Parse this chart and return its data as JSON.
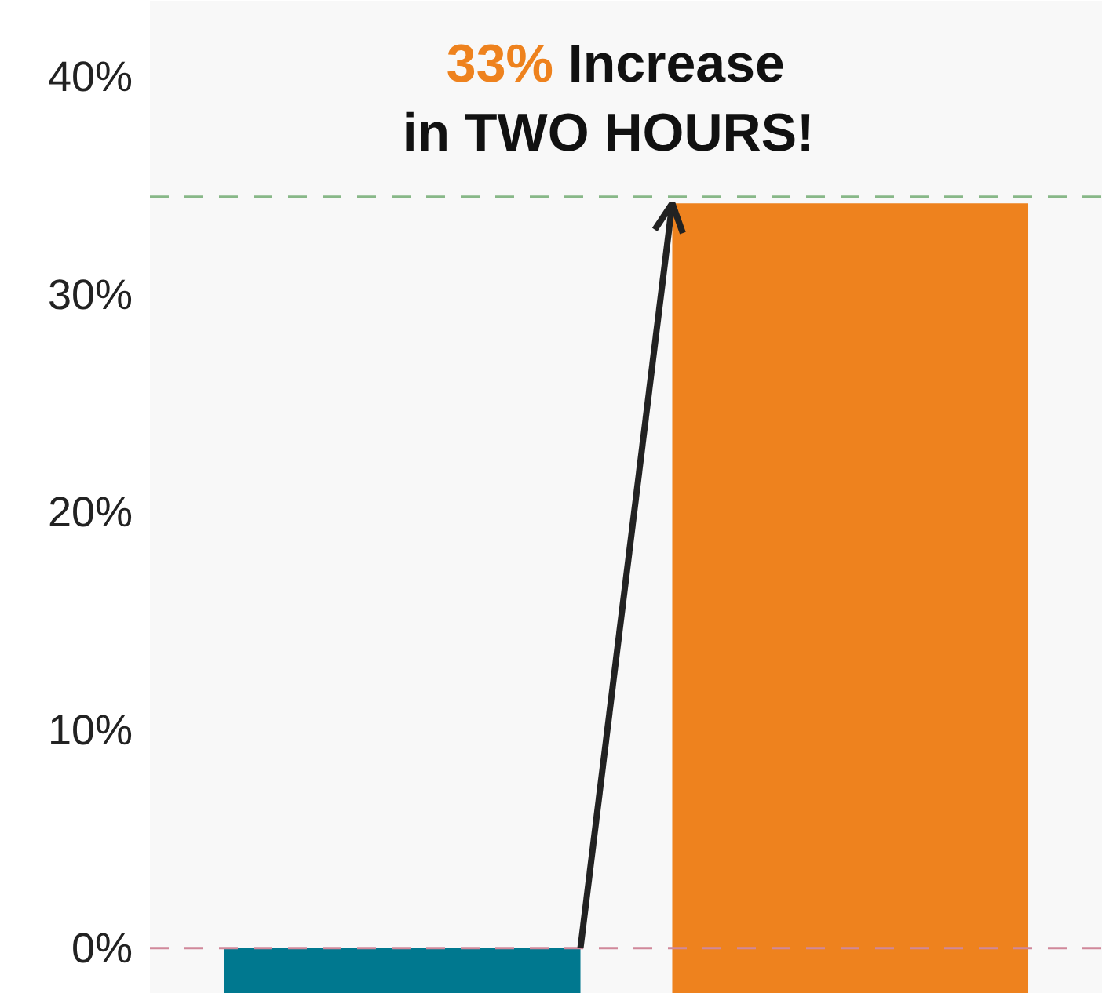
{
  "chart_data": {
    "type": "bar",
    "title": "33% Increase in TWO HOURS!",
    "categories": [
      null,
      null
    ],
    "base": [
      -2.1,
      -2.1
    ],
    "values": [
      2.1,
      36.3
    ],
    "colors": [
      "#00788f",
      "#ee821e"
    ],
    "ylim": [
      -2.1,
      43.5
    ],
    "yticks": [
      {
        "value": 0,
        "label": "0%"
      },
      {
        "value": 10,
        "label": "10%"
      },
      {
        "value": 20,
        "label": "20%"
      },
      {
        "value": 30,
        "label": "30%"
      },
      {
        "value": 40,
        "label": "40%"
      }
    ],
    "ref_lines": [
      {
        "axis": "y",
        "value": 0,
        "label": null,
        "color": "#d0889a",
        "line_style": "dashed"
      },
      {
        "axis": "y",
        "value": 34.5,
        "label": null,
        "color": "#88b888",
        "line_style": "dashed"
      }
    ],
    "grid": false
  }
}
